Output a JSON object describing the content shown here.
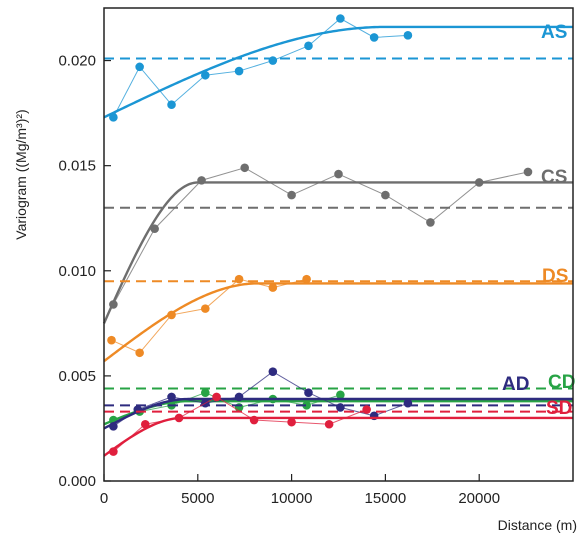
{
  "chart_data": {
    "type": "line",
    "xlabel": "Distance (m)",
    "ylabel": "Variogram ((Mg/m³)²)",
    "xlim": [
      0,
      25000
    ],
    "ylim": [
      0,
      0.0225
    ],
    "x_ticks": [
      0,
      5000,
      10000,
      15000,
      20000
    ],
    "x_tick_labels": [
      "0",
      "5000",
      "10000",
      "15000",
      "20000"
    ],
    "y_ticks": [
      0,
      0.005,
      0.01,
      0.015,
      0.02
    ],
    "y_tick_labels": [
      "0.000",
      "0.005",
      "0.010",
      "0.015",
      "0.020"
    ],
    "grid": false,
    "legend": "none",
    "series": [
      {
        "name": "AS",
        "color": "#1b96d4",
        "points": [
          [
            500,
            0.0173
          ],
          [
            1900,
            0.0197
          ],
          [
            3600,
            0.0179
          ],
          [
            5400,
            0.0193
          ],
          [
            7200,
            0.0195
          ],
          [
            9000,
            0.02
          ],
          [
            10900,
            0.0207
          ],
          [
            12600,
            0.022
          ],
          [
            14400,
            0.0211
          ],
          [
            16200,
            0.0212
          ]
        ],
        "fit": {
          "nugget": 0.0173,
          "sill": 0.0216,
          "range": 15000
        },
        "reference": 0.0201
      },
      {
        "name": "CS",
        "color": "#6e6e6e",
        "points": [
          [
            500,
            0.0084
          ],
          [
            2700,
            0.012
          ],
          [
            5200,
            0.0143
          ],
          [
            7500,
            0.0149
          ],
          [
            10000,
            0.0136
          ],
          [
            12500,
            0.0146
          ],
          [
            15000,
            0.0136
          ],
          [
            17400,
            0.0123
          ],
          [
            20000,
            0.0142
          ],
          [
            22600,
            0.0147
          ]
        ],
        "fit": {
          "nugget": 0.0075,
          "sill": 0.0142,
          "range": 5000
        },
        "reference": 0.013
      },
      {
        "name": "DS",
        "color": "#ee8a25",
        "points": [
          [
            400,
            0.0067
          ],
          [
            1900,
            0.0061
          ],
          [
            3600,
            0.0079
          ],
          [
            5400,
            0.0082
          ],
          [
            7200,
            0.0096
          ],
          [
            9000,
            0.0092
          ],
          [
            10800,
            0.0096
          ]
        ],
        "fit": {
          "nugget": 0.0057,
          "sill": 0.0094,
          "range": 8200
        },
        "reference": 0.0095
      },
      {
        "name": "CD",
        "color": "#27a345",
        "points": [
          [
            500,
            0.0029
          ],
          [
            1900,
            0.0033
          ],
          [
            3600,
            0.0036
          ],
          [
            5400,
            0.0042
          ],
          [
            7200,
            0.0035
          ],
          [
            9000,
            0.0039
          ],
          [
            10800,
            0.0036
          ],
          [
            12600,
            0.0041
          ]
        ],
        "fit": {
          "nugget": 0.0027,
          "sill": 0.0038,
          "range": 4500
        },
        "reference": 0.0044
      },
      {
        "name": "AD",
        "color": "#2e2b7f",
        "points": [
          [
            500,
            0.0026
          ],
          [
            1800,
            0.0034
          ],
          [
            3600,
            0.004
          ],
          [
            5400,
            0.0037
          ],
          [
            7200,
            0.004
          ],
          [
            9000,
            0.0052
          ],
          [
            10900,
            0.0042
          ],
          [
            12600,
            0.0035
          ],
          [
            14400,
            0.0031
          ],
          [
            16200,
            0.0037
          ]
        ],
        "fit": {
          "nugget": 0.0025,
          "sill": 0.0039,
          "range": 4500
        },
        "reference": 0.0036
      },
      {
        "name": "SD",
        "color": "#e01f3d",
        "points": [
          [
            500,
            0.0014
          ],
          [
            2200,
            0.0027
          ],
          [
            4000,
            0.003
          ],
          [
            6000,
            0.004
          ],
          [
            8000,
            0.0029
          ],
          [
            10000,
            0.0028
          ],
          [
            12000,
            0.0027
          ],
          [
            14000,
            0.0034
          ]
        ],
        "fit": {
          "nugget": 0.0012,
          "sill": 0.003,
          "range": 4200
        },
        "reference": 0.0033
      }
    ]
  }
}
